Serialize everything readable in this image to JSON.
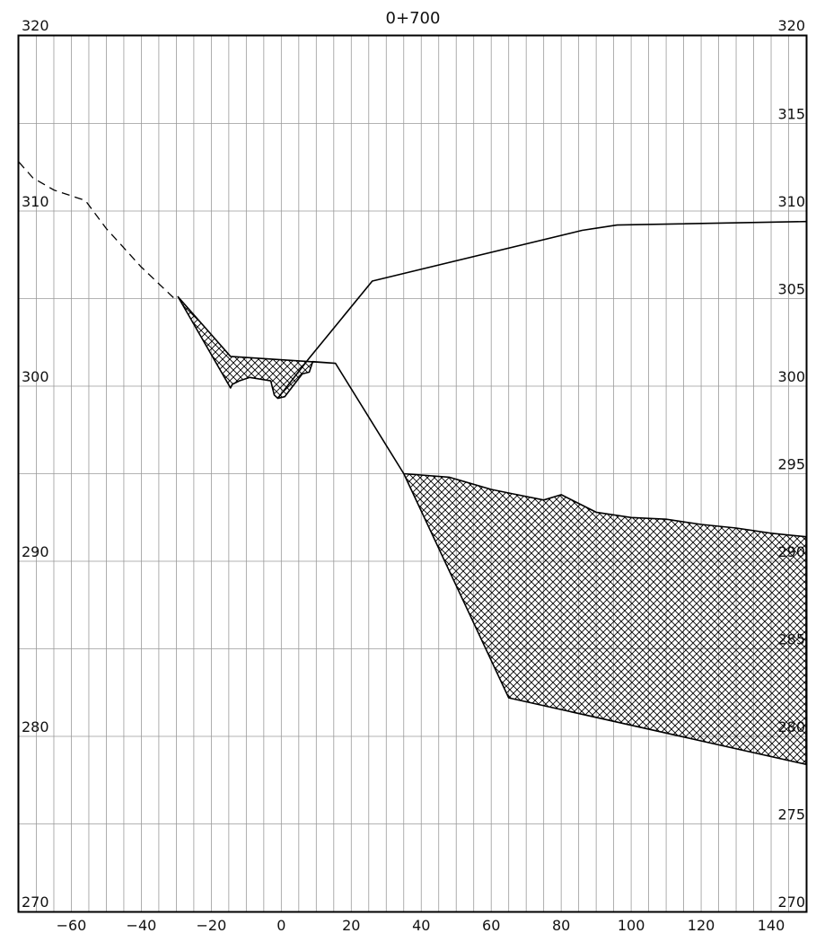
{
  "chart_data": {
    "type": "cross-section",
    "title": "0+700",
    "xlim": [
      -75,
      150
    ],
    "ylim": [
      270,
      320
    ],
    "x_ticks": [
      -60,
      -40,
      -20,
      0,
      20,
      40,
      60,
      80,
      100,
      120,
      140
    ],
    "y_ticks_left": [
      320,
      310,
      300,
      290,
      280,
      270
    ],
    "y_ticks_right": [
      320,
      315,
      310,
      305,
      300,
      295,
      290,
      285,
      280,
      275,
      270
    ],
    "minor_x_step": 5,
    "grid_y_step": 5,
    "grid": true,
    "series": [
      {
        "role": "existing-ground-dashed",
        "style": "dashed",
        "points": [
          [
            -75,
            312.8
          ],
          [
            -71,
            311.9
          ],
          [
            -65,
            311.2
          ],
          [
            -56,
            310.6
          ],
          [
            -50,
            309.0
          ],
          [
            -40,
            306.8
          ],
          [
            -30,
            304.9
          ]
        ]
      },
      {
        "role": "design-profile",
        "style": "solid",
        "points": [
          [
            -1,
            299.3
          ],
          [
            8,
            301.6
          ],
          [
            26,
            306.0
          ],
          [
            86,
            308.9
          ],
          [
            96,
            309.2
          ],
          [
            150,
            309.4
          ]
        ]
      },
      {
        "role": "hatched-layer-upper",
        "style": "hatched",
        "polygon": [
          [
            -29.5,
            305.1
          ],
          [
            -14.5,
            301.7
          ],
          [
            15.5,
            301.3
          ],
          [
            35,
            295.0
          ],
          [
            48,
            294.8
          ],
          [
            60,
            294.1
          ],
          [
            65,
            293.9
          ],
          [
            75,
            293.5
          ],
          [
            80,
            293.8
          ],
          [
            85,
            293.3
          ],
          [
            90,
            292.8
          ],
          [
            100,
            292.5
          ],
          [
            110,
            292.4
          ],
          [
            120,
            292.1
          ],
          [
            130,
            291.9
          ],
          [
            140,
            291.6
          ],
          [
            150,
            291.4
          ],
          [
            150,
            278.4
          ],
          [
            65,
            282.2
          ],
          [
            35,
            295.0
          ],
          [
            15.5,
            301.3
          ],
          [
            9,
            301.4
          ],
          [
            8,
            300.8
          ],
          [
            6,
            300.7
          ],
          [
            1,
            299.4
          ],
          [
            -1,
            299.3
          ],
          [
            -2,
            299.5
          ],
          [
            -3,
            300.3
          ],
          [
            -6,
            300.4
          ],
          [
            -9,
            300.5
          ],
          [
            -12,
            300.3
          ],
          [
            -14,
            300.1
          ],
          [
            -14.5,
            299.9
          ]
        ]
      }
    ]
  }
}
